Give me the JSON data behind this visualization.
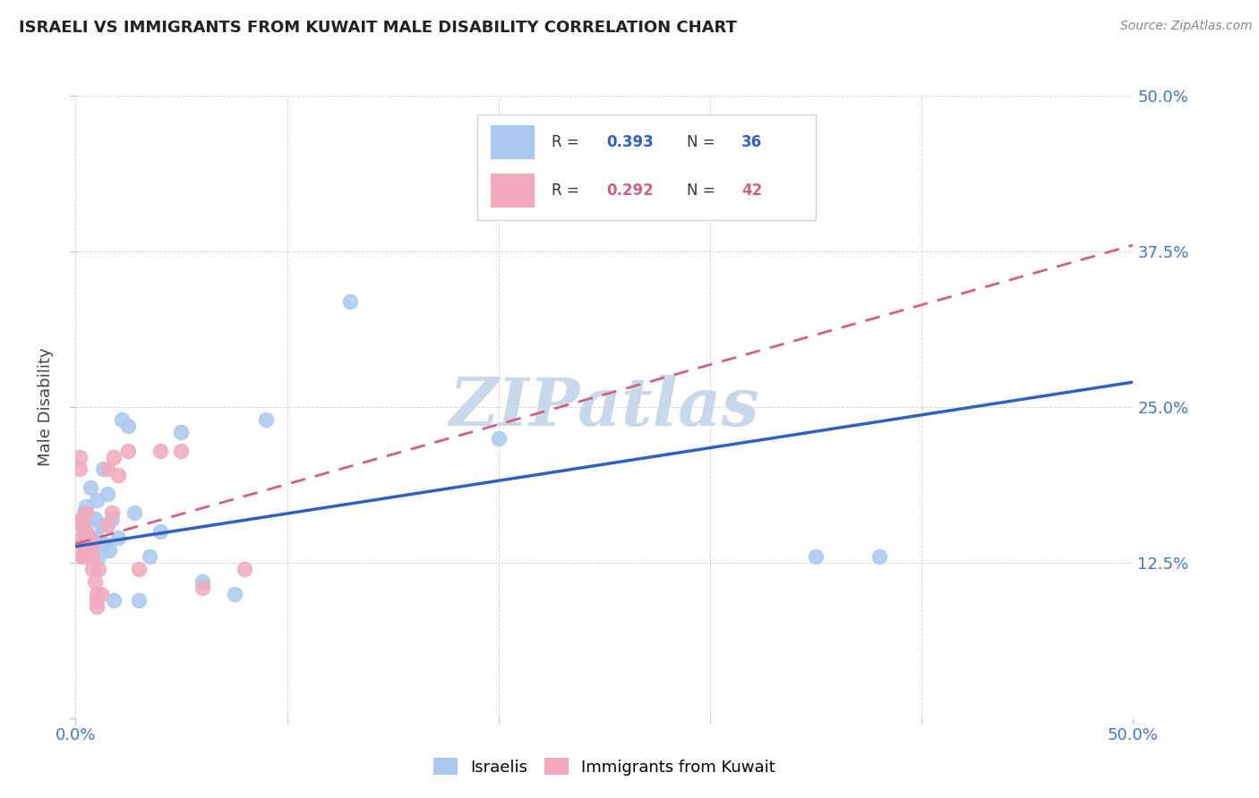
{
  "title": "ISRAELI VS IMMIGRANTS FROM KUWAIT MALE DISABILITY CORRELATION CHART",
  "source": "Source: ZipAtlas.com",
  "ylabel_label": "Male Disability",
  "xlim": [
    0.0,
    0.5
  ],
  "ylim": [
    0.0,
    0.5
  ],
  "xtick_positions": [
    0.0,
    0.1,
    0.2,
    0.3,
    0.4,
    0.5
  ],
  "xtick_labels": [
    "0.0%",
    "",
    "",
    "",
    "",
    "50.0%"
  ],
  "ytick_positions": [
    0.0,
    0.125,
    0.25,
    0.375,
    0.5
  ],
  "ytick_labels": [
    "",
    "12.5%",
    "25.0%",
    "37.5%",
    "50.0%"
  ],
  "israeli_color": "#aac8f0",
  "immigrant_color": "#f0aabb",
  "israeli_line_color": "#3060c0",
  "immigrant_line_color": "#d06080",
  "background_color": "#ffffff",
  "watermark": "ZIPatlas",
  "watermark_color": "#c8d8ea",
  "israelis_x": [
    0.003,
    0.004,
    0.004,
    0.005,
    0.005,
    0.005,
    0.006,
    0.007,
    0.007,
    0.008,
    0.009,
    0.01,
    0.01,
    0.011,
    0.012,
    0.013,
    0.014,
    0.015,
    0.016,
    0.017,
    0.018,
    0.02,
    0.022,
    0.025,
    0.028,
    0.03,
    0.035,
    0.04,
    0.05,
    0.06,
    0.075,
    0.09,
    0.13,
    0.2,
    0.35,
    0.38
  ],
  "israelis_y": [
    0.155,
    0.15,
    0.165,
    0.14,
    0.16,
    0.17,
    0.135,
    0.145,
    0.185,
    0.13,
    0.16,
    0.145,
    0.175,
    0.13,
    0.155,
    0.2,
    0.14,
    0.18,
    0.135,
    0.16,
    0.095,
    0.145,
    0.24,
    0.235,
    0.165,
    0.095,
    0.13,
    0.15,
    0.23,
    0.11,
    0.1,
    0.24,
    0.335,
    0.225,
    0.13,
    0.13
  ],
  "immigrants_x": [
    0.002,
    0.002,
    0.003,
    0.003,
    0.003,
    0.003,
    0.003,
    0.004,
    0.004,
    0.004,
    0.004,
    0.005,
    0.005,
    0.005,
    0.005,
    0.005,
    0.005,
    0.006,
    0.006,
    0.006,
    0.007,
    0.007,
    0.008,
    0.008,
    0.008,
    0.009,
    0.01,
    0.01,
    0.01,
    0.011,
    0.012,
    0.015,
    0.015,
    0.017,
    0.018,
    0.02,
    0.025,
    0.03,
    0.04,
    0.05,
    0.06,
    0.08
  ],
  "immigrants_y": [
    0.2,
    0.21,
    0.13,
    0.14,
    0.145,
    0.155,
    0.16,
    0.13,
    0.135,
    0.14,
    0.15,
    0.13,
    0.135,
    0.14,
    0.145,
    0.15,
    0.165,
    0.13,
    0.14,
    0.145,
    0.13,
    0.135,
    0.12,
    0.13,
    0.14,
    0.11,
    0.09,
    0.095,
    0.1,
    0.12,
    0.1,
    0.155,
    0.2,
    0.165,
    0.21,
    0.195,
    0.215,
    0.12,
    0.215,
    0.215,
    0.105,
    0.12
  ],
  "israeli_trend_x": [
    0.0,
    0.5
  ],
  "israeli_trend_y": [
    0.138,
    0.27
  ],
  "immigrant_trend_x": [
    0.0,
    0.5
  ],
  "immigrant_trend_y": [
    0.14,
    0.38
  ]
}
